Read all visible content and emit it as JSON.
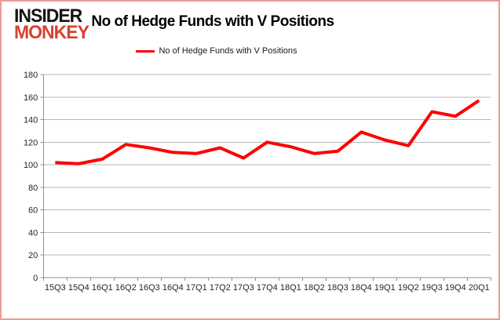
{
  "window": {
    "border_color": "#ec9c94",
    "background_color": "#ffffff"
  },
  "logo": {
    "line1": "INSIDER",
    "line2": "MONKEY",
    "line1_color": "#141414",
    "line2_color": "#d8402f"
  },
  "header": {
    "title": "No of Hedge Funds with V Positions"
  },
  "legend": {
    "label": "No of Hedge Funds with V Positions",
    "line_color": "#ff0000",
    "position": "top-center"
  },
  "chart_data": {
    "type": "line",
    "title": "No of Hedge Funds with V Positions",
    "categories": [
      "15Q3",
      "15Q4",
      "16Q1",
      "16Q2",
      "16Q3",
      "16Q4",
      "17Q1",
      "17Q2",
      "17Q3",
      "17Q4",
      "18Q1",
      "18Q2",
      "18Q3",
      "18Q4",
      "19Q1",
      "19Q2",
      "19Q3",
      "19Q4",
      "20Q1"
    ],
    "series": [
      {
        "name": "No of Hedge Funds with V Positions",
        "color": "#ff0000",
        "values": [
          102,
          101,
          105,
          118,
          115,
          111,
          110,
          115,
          106,
          120,
          116,
          110,
          112,
          129,
          122,
          117,
          147,
          143,
          157
        ]
      }
    ],
    "xlabel": "",
    "ylabel": "",
    "ylim": [
      0,
      180
    ],
    "yticks": [
      0,
      20,
      40,
      60,
      80,
      100,
      120,
      140,
      160,
      180
    ],
    "grid": true,
    "gridline_color": "#b7b7b7",
    "axis_color": "#8f8f8f",
    "tick_label_color": "#262626",
    "line_width": 4
  }
}
